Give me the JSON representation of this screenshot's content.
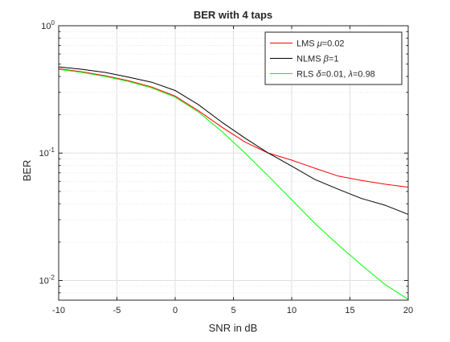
{
  "chart_data": {
    "type": "line",
    "title": "BER with 4 taps",
    "xlabel": "SNR in dB",
    "ylabel": "BER",
    "xlim": [
      -10,
      20
    ],
    "ylim": [
      0.007,
      1
    ],
    "yscale": "log",
    "grid": true,
    "legend_position": "top-right",
    "x_ticks": [
      -10,
      -5,
      0,
      5,
      10,
      15,
      20
    ],
    "x_tick_labels": [
      "-10",
      "-5",
      "0",
      "5",
      "10",
      "15",
      "20"
    ],
    "y_ticks": [
      0.01,
      0.1,
      1
    ],
    "y_tick_labels": [
      {
        "base": "10",
        "exp": "-2"
      },
      {
        "base": "10",
        "exp": "-1"
      },
      {
        "base": "10",
        "exp": "0"
      }
    ],
    "x": [
      -10,
      -8,
      -6,
      -4,
      -2,
      0,
      2,
      4,
      6,
      8,
      10,
      12,
      14,
      16,
      18,
      20
    ],
    "series": [
      {
        "name": "LMS μ=0.02",
        "label_parts": [
          {
            "t": "LMS "
          },
          {
            "t": "μ",
            "i": true
          },
          {
            "t": "=0.02"
          }
        ],
        "color": "#ff0000",
        "values": [
          0.46,
          0.435,
          0.405,
          0.37,
          0.33,
          0.28,
          0.215,
          0.16,
          0.122,
          0.1,
          0.088,
          0.076,
          0.066,
          0.061,
          0.057,
          0.054
        ]
      },
      {
        "name": "NLMS β=1",
        "label_parts": [
          {
            "t": "NLMS "
          },
          {
            "t": "β",
            "i": true
          },
          {
            "t": "=1"
          }
        ],
        "color": "#000000",
        "values": [
          0.475,
          0.455,
          0.43,
          0.395,
          0.36,
          0.31,
          0.24,
          0.175,
          0.131,
          0.1,
          0.079,
          0.062,
          0.052,
          0.044,
          0.039,
          0.033
        ]
      },
      {
        "name": "RLS δ=0.01, λ=0.98",
        "label_parts": [
          {
            "t": "RLS  "
          },
          {
            "t": "δ",
            "i": true
          },
          {
            "t": "=0.01,  "
          },
          {
            "t": "λ",
            "i": true
          },
          {
            "t": "=0.98"
          }
        ],
        "color": "#00ff00",
        "values": [
          0.455,
          0.43,
          0.4,
          0.365,
          0.325,
          0.275,
          0.21,
          0.148,
          0.1,
          0.066,
          0.043,
          0.028,
          0.019,
          0.0132,
          0.0093,
          0.0071
        ]
      }
    ]
  }
}
